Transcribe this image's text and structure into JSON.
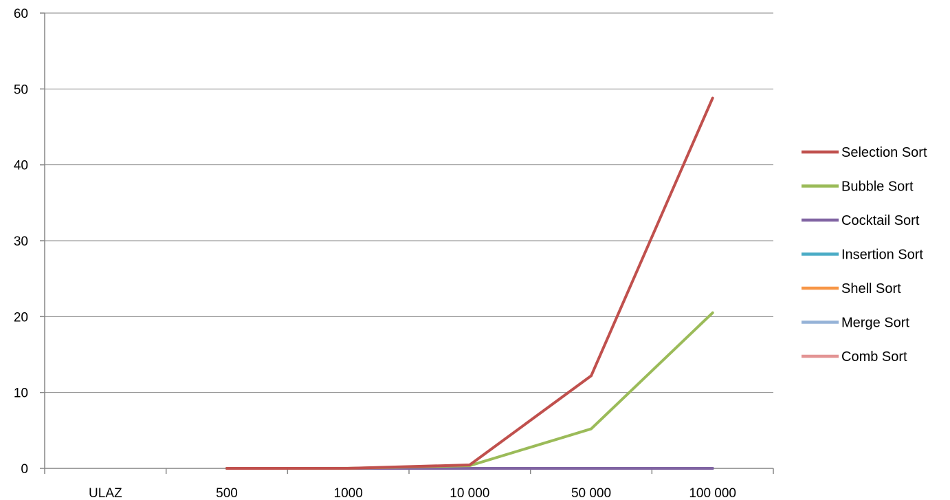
{
  "chart_data": {
    "type": "line",
    "categories": [
      "ULAZ",
      "500",
      "1000",
      "10 000",
      "50 000",
      "100 000"
    ],
    "ylim": [
      0,
      60
    ],
    "yticks": [
      0,
      10,
      20,
      30,
      40,
      50,
      60
    ],
    "grid": true,
    "legend_position": "right",
    "series": [
      {
        "name": "Selection Sort",
        "color": "#c0504d",
        "values": [
          null,
          0,
          0.01,
          0.45,
          12.2,
          48.8
        ]
      },
      {
        "name": "Bubble Sort",
        "color": "#9bbb59",
        "values": [
          null,
          0,
          0.01,
          0.35,
          5.2,
          20.5
        ]
      },
      {
        "name": "Cocktail Sort",
        "color": "#8064a2",
        "values": [
          null,
          0,
          0,
          0,
          0,
          0
        ]
      },
      {
        "name": "Insertion Sort",
        "color": "#4bacc6",
        "values": [
          null,
          0,
          0,
          0,
          0,
          0
        ]
      },
      {
        "name": "Shell Sort",
        "color": "#f79646",
        "values": [
          null,
          0,
          0,
          0,
          0,
          0
        ]
      },
      {
        "name": "Merge Sort",
        "color": "#95b3d7",
        "values": [
          null,
          0,
          0,
          0,
          0,
          0
        ]
      },
      {
        "name": "Comb Sort",
        "color": "#e39494",
        "values": [
          null,
          0,
          0,
          0,
          0,
          0
        ]
      }
    ]
  }
}
